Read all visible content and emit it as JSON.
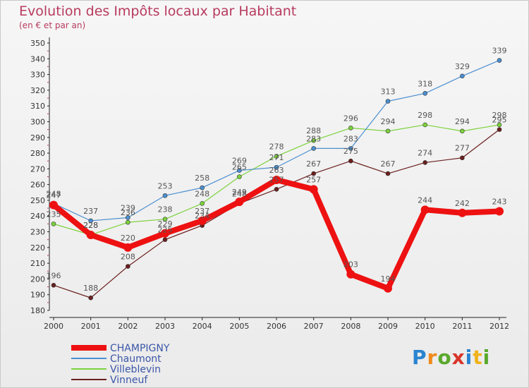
{
  "header": {
    "title": "Evolution des Impôts locaux par Habitant",
    "subtitle": "(en € et par an)"
  },
  "logo": {
    "text": "Proxiti"
  },
  "colors": {
    "CHAMPIGNY": "#ee1111",
    "Chaumont": "#4b8fd0",
    "Villeblevin": "#7cd23c",
    "Vinneuf": "#6b1e1e",
    "axis_label": "#b83b5e",
    "value_label": "#555555"
  },
  "chart_data": {
    "type": "line",
    "title": "Evolution des Impôts locaux par Habitant",
    "subtitle": "(en € et par an)",
    "xlabel": "",
    "ylabel": "",
    "x": [
      "2000",
      "2001",
      "2002",
      "2003",
      "2004",
      "2005",
      "2006",
      "2007",
      "2008",
      "2009",
      "2010",
      "2011",
      "2012"
    ],
    "ylim": [
      180,
      350
    ],
    "yticks": [
      180,
      190,
      200,
      210,
      220,
      230,
      240,
      250,
      260,
      270,
      280,
      290,
      300,
      310,
      320,
      330,
      340,
      350
    ],
    "grid": false,
    "legend_position": "bottom-left",
    "series": [
      {
        "name": "CHAMPIGNY",
        "values": [
          247,
          228,
          220,
          229,
          237,
          249,
          263,
          257,
          203,
          194,
          244,
          242,
          243
        ]
      },
      {
        "name": "Chaumont",
        "values": [
          248,
          237,
          239,
          253,
          258,
          269,
          271,
          283,
          283,
          313,
          318,
          329,
          339
        ]
      },
      {
        "name": "Villeblevin",
        "values": [
          235,
          228,
          236,
          238,
          248,
          265,
          278,
          288,
          296,
          294,
          298,
          294,
          298
        ]
      },
      {
        "name": "Vinneuf",
        "values": [
          196,
          188,
          208,
          225,
          234,
          248,
          257,
          267,
          275,
          267,
          274,
          277,
          295
        ]
      }
    ]
  }
}
